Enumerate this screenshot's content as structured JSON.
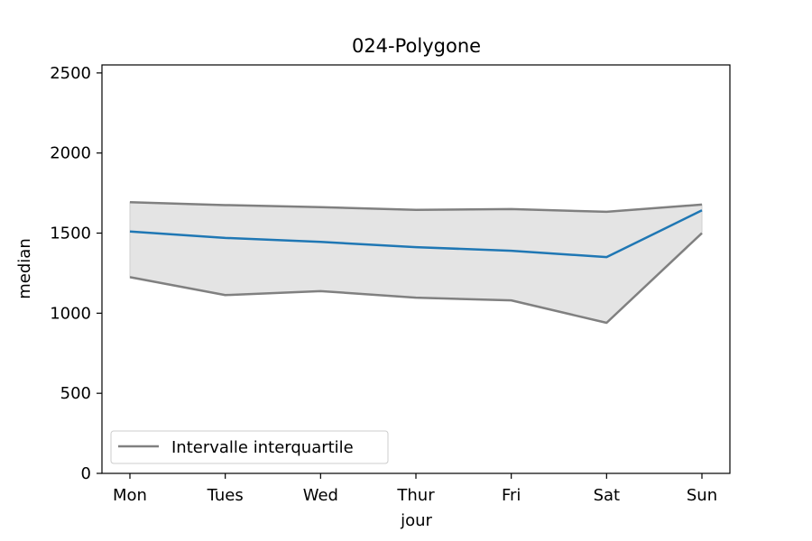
{
  "chart_data": {
    "type": "line",
    "title": "024-Polygone",
    "xlabel": "jour",
    "ylabel": "median",
    "categories": [
      "Mon",
      "Tues",
      "Wed",
      "Thur",
      "Fri",
      "Sat",
      "Sun"
    ],
    "ylim": [
      0,
      2550
    ],
    "yticks": [
      0,
      500,
      1000,
      1500,
      2000,
      2500
    ],
    "grid": false,
    "legend": {
      "position": "lower-left",
      "entries": [
        "Intervalle interquartile"
      ]
    },
    "series": [
      {
        "role": "median",
        "color": "#1f77b4",
        "values": [
          1510,
          1470,
          1445,
          1412,
          1390,
          1350,
          1642
        ]
      },
      {
        "role": "q3",
        "color": "#808080",
        "values": [
          1693,
          1675,
          1662,
          1645,
          1650,
          1633,
          1678
        ]
      },
      {
        "role": "q1",
        "color": "#808080",
        "values": [
          1225,
          1113,
          1138,
          1097,
          1080,
          940,
          1500
        ]
      }
    ],
    "band_fill": "#e4e4e4"
  }
}
